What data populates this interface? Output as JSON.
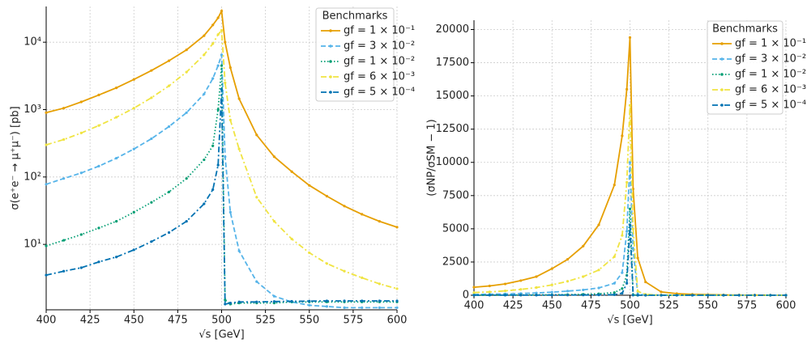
{
  "chart_data": [
    {
      "type": "line",
      "ylabel": "σ(e⁺e⁻ → μ⁺μ⁻) [pb]",
      "xlabel": "√s [GeV]",
      "ylog": true,
      "grid": true,
      "legend_title": "Benchmarks",
      "legend": "upper right",
      "xlim": [
        400,
        600
      ],
      "xticks": [
        400,
        425,
        450,
        475,
        500,
        525,
        550,
        575,
        600
      ],
      "ylim": [
        1.07,
        33900
      ],
      "yticks": [
        {
          "value": 10,
          "label": "10¹"
        },
        {
          "value": 100,
          "label": "10²"
        },
        {
          "value": 1000,
          "label": "10³"
        },
        {
          "value": 10000,
          "label": "10⁴"
        }
      ],
      "x": [
        400,
        410,
        420,
        430,
        440,
        450,
        460,
        470,
        480,
        490,
        495,
        498,
        500,
        502,
        505,
        510,
        520,
        530,
        540,
        550,
        560,
        570,
        580,
        590,
        600
      ],
      "series": [
        {
          "name": "gf = 1 × 10⁻¹",
          "color": "#E69F00",
          "linestyle": "solid",
          "values": [
            900,
            1050,
            1300,
            1650,
            2100,
            2800,
            3800,
            5300,
            7700,
            12500,
            18000,
            23000,
            29000,
            10000,
            4200,
            1450,
            420,
            200,
            120,
            75,
            52,
            37,
            28,
            22,
            18
          ]
        },
        {
          "name": "gf = 3 × 10⁻²",
          "color": "#56B4E9",
          "linestyle": "dashed",
          "values": [
            78,
            95,
            115,
            145,
            190,
            260,
            370,
            560,
            900,
            1700,
            2900,
            4500,
            6500,
            200,
            30,
            8,
            2.8,
            1.7,
            1.4,
            1.25,
            1.2,
            1.15,
            1.15,
            1.15,
            1.15
          ]
        },
        {
          "name": "gf = 1 × 10⁻²",
          "color": "#009E73",
          "linestyle": "dotted",
          "values": [
            9.5,
            11.5,
            14,
            17.5,
            22,
            30,
            42,
            60,
            95,
            180,
            290,
            1000,
            4500,
            1.5,
            1.3,
            1.35,
            1.35,
            1.35,
            1.4,
            1.4,
            1.4,
            1.4,
            1.4,
            1.4,
            1.4
          ]
        },
        {
          "name": "gf = 6 × 10⁻³",
          "color": "#F0E442",
          "linestyle": "dashdot",
          "values": [
            300,
            360,
            450,
            580,
            770,
            1050,
            1500,
            2250,
            3600,
            6500,
            9500,
            13000,
            15000,
            2500,
            700,
            260,
            50,
            22,
            12,
            7.5,
            5.2,
            4,
            3.2,
            2.6,
            2.2
          ]
        },
        {
          "name": "gf = 5 × 10⁻⁴",
          "color": "#0072B2",
          "linestyle": "dashdot",
          "values": [
            3.5,
            4,
            4.5,
            5.5,
            6.5,
            8.3,
            11,
            15,
            22,
            40,
            65,
            150,
            2000,
            1.3,
            1.35,
            1.4,
            1.4,
            1.42,
            1.43,
            1.44,
            1.45,
            1.45,
            1.45,
            1.45,
            1.45
          ]
        }
      ]
    },
    {
      "type": "line",
      "ylabel": "(σNP/σSM − 1)",
      "xlabel": "√s [GeV]",
      "ylog": false,
      "grid": true,
      "legend_title": "Benchmarks",
      "legend": "upper right",
      "xlim": [
        400,
        600
      ],
      "xticks": [
        400,
        425,
        450,
        475,
        500,
        525,
        550,
        575,
        600
      ],
      "ylim": [
        0,
        20700
      ],
      "yticks": [
        0,
        2500,
        5000,
        7500,
        10000,
        12500,
        15000,
        17500,
        20000
      ],
      "x": [
        400,
        410,
        420,
        430,
        440,
        450,
        460,
        470,
        480,
        490,
        495,
        498,
        500,
        502,
        505,
        510,
        520,
        530,
        540,
        550,
        560,
        570,
        580,
        590,
        600
      ],
      "series": [
        {
          "name": "gf = 1 × 10⁻¹",
          "color": "#E69F00",
          "linestyle": "solid",
          "values": [
            600,
            700,
            850,
            1100,
            1400,
            2000,
            2700,
            3700,
            5300,
            8300,
            12000,
            15500,
            19400,
            8000,
            2800,
            1000,
            250,
            120,
            70,
            40,
            25,
            15,
            10,
            7,
            5
          ]
        },
        {
          "name": "gf = 3 × 10⁻²",
          "color": "#56B4E9",
          "linestyle": "dashed",
          "values": [
            60,
            80,
            100,
            130,
            170,
            230,
            310,
            400,
            550,
            900,
            1700,
            4800,
            10000,
            3500,
            100,
            20,
            5,
            4,
            3,
            3,
            2,
            2,
            2,
            2,
            2
          ]
        },
        {
          "name": "gf = 1 × 10⁻²",
          "color": "#009E73",
          "linestyle": "dotted",
          "values": [
            10,
            12,
            15,
            20,
            25,
            35,
            48,
            70,
            110,
            200,
            500,
            1500,
            6500,
            20,
            1,
            1,
            1,
            1,
            1,
            1,
            1,
            1,
            1,
            1,
            1
          ]
        },
        {
          "name": "gf = 6 × 10⁻³",
          "color": "#F0E442",
          "linestyle": "dashdot",
          "values": [
            200,
            250,
            330,
            440,
            580,
            780,
            1050,
            1400,
            1900,
            2900,
            4500,
            8500,
            14300,
            5000,
            300,
            60,
            15,
            8,
            5,
            4,
            3,
            3,
            2,
            2,
            2
          ]
        },
        {
          "name": "gf = 5 × 10⁻⁴",
          "color": "#0072B2",
          "linestyle": "dashdot",
          "values": [
            3,
            4,
            5,
            6,
            8,
            10,
            13,
            18,
            25,
            40,
            150,
            900,
            5300,
            10,
            1,
            1,
            1,
            1,
            1,
            1,
            1,
            1,
            1,
            1,
            1
          ]
        }
      ]
    }
  ]
}
